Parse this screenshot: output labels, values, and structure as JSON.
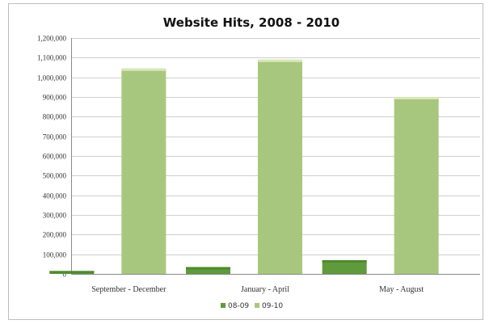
{
  "chart_data": {
    "type": "bar",
    "title": "Website Hits, 2008 - 2010",
    "xlabel": "",
    "ylabel": "",
    "categories": [
      "September - December",
      "January - April",
      "May - August"
    ],
    "series": [
      {
        "name": "08-09",
        "values": [
          15000,
          35000,
          70000
        ],
        "color": "#5f9a3c",
        "top_color": "#4f8a2e"
      },
      {
        "name": "09-10",
        "values": [
          1045000,
          1090000,
          900000
        ],
        "color": "#a8c77e",
        "top_color": "#d8e8b8"
      }
    ],
    "ylim": [
      0,
      1200000
    ],
    "yticks": [
      0,
      100000,
      200000,
      300000,
      400000,
      500000,
      600000,
      700000,
      800000,
      900000,
      1000000,
      1100000,
      1200000
    ],
    "ytick_labels": [
      "0",
      "100,000",
      "200,000",
      "300,000",
      "400,000",
      "500,000",
      "600,000",
      "700,000",
      "800,000",
      "900,000",
      "1,000,000",
      "1,100,000",
      "1,200,000"
    ],
    "grid": true,
    "legend_position": "bottom"
  }
}
